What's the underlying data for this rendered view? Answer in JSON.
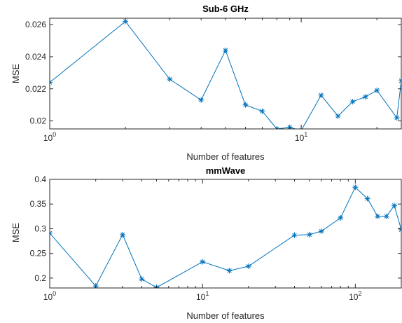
{
  "chart_data": [
    {
      "type": "line",
      "title": "Sub-6 GHz",
      "xlabel": "Number of features",
      "ylabel": "MSE",
      "xscale": "log",
      "xlim": [
        1,
        25
      ],
      "ylim": [
        0.0195,
        0.0264
      ],
      "xticks": [
        1,
        10
      ],
      "xtick_labels": [
        {
          "base": "10",
          "exp": "0"
        },
        {
          "base": "10",
          "exp": "1"
        }
      ],
      "yticks": [
        0.02,
        0.022,
        0.024,
        0.026
      ],
      "ytick_labels": [
        "0.02",
        "0.022",
        "0.024",
        "0.026"
      ],
      "color": "#0072BD",
      "marker": "asterisk",
      "grid": false,
      "series": [
        {
          "x": [
            1,
            2,
            3,
            4,
            5,
            6,
            7,
            8,
            9,
            10,
            12,
            14,
            16,
            18,
            20,
            24,
            25
          ],
          "y": [
            0.0224,
            0.0262,
            0.0226,
            0.0213,
            0.0244,
            0.021,
            0.0206,
            0.0195,
            0.0196,
            0.0194,
            0.0216,
            0.0203,
            0.0212,
            0.0215,
            0.0219,
            0.0202,
            0.0225
          ]
        }
      ]
    },
    {
      "type": "line",
      "title": "mmWave",
      "xlabel": "Number of features",
      "ylabel": "MSE",
      "xscale": "log",
      "xlim": [
        1,
        200
      ],
      "ylim": [
        0.18,
        0.4
      ],
      "xticks": [
        1,
        10,
        100
      ],
      "xtick_labels": [
        {
          "base": "10",
          "exp": "0"
        },
        {
          "base": "10",
          "exp": "1"
        },
        {
          "base": "10",
          "exp": "2"
        }
      ],
      "yticks": [
        0.2,
        0.25,
        0.3,
        0.35,
        0.4
      ],
      "ytick_labels": [
        "0.2",
        "0.25",
        "0.3",
        "0.35",
        "0.4"
      ],
      "color": "#0072BD",
      "marker": "asterisk",
      "grid": false,
      "series": [
        {
          "x": [
            1,
            2,
            3,
            4,
            5,
            10,
            15,
            20,
            40,
            50,
            60,
            80,
            100,
            120,
            140,
            160,
            180,
            200
          ],
          "y": [
            0.291,
            0.184,
            0.288,
            0.198,
            0.181,
            0.233,
            0.215,
            0.224,
            0.287,
            0.288,
            0.295,
            0.322,
            0.384,
            0.361,
            0.325,
            0.325,
            0.347,
            0.298
          ]
        }
      ]
    }
  ]
}
